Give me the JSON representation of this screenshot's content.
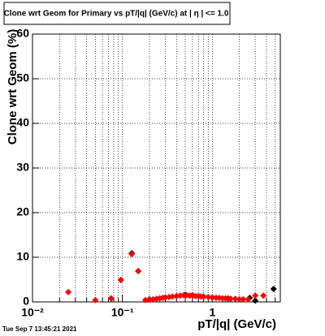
{
  "chart_data": {
    "type": "scatter",
    "title": "Clone wrt Geom for Primary vs pT/|q| (GeV/c) at |  η  | <= 1.0",
    "x_label": "pT/|q| (GeV/c)",
    "y_label": "Clone wrt Geom (%)",
    "timestamp": "Tue Sep  7 13:45:21 2021",
    "log_x": true,
    "grid": true,
    "xlim": [
      0.01,
      5.7
    ],
    "xticks": [
      {
        "value": 0.01,
        "label": "10⁻²"
      },
      {
        "value": 0.1,
        "label": "10⁻¹"
      },
      1
    ],
    "xminorticks": [
      0.02,
      0.03,
      0.04,
      0.05,
      0.06,
      0.07,
      0.08,
      0.09,
      0.2,
      0.3,
      0.4,
      0.5,
      0.6,
      0.7,
      0.8,
      0.9,
      2,
      3,
      4,
      5
    ],
    "ylim": [
      0,
      60
    ],
    "yticks": [
      0,
      10,
      20,
      30,
      40,
      50,
      60
    ],
    "series": [
      {
        "color": "#000000",
        "x": [
          0.075,
          0.096,
          0.127,
          0.15,
          0.2,
          0.3,
          0.4,
          0.5,
          0.6,
          0.8,
          1.0,
          1.5,
          2.6,
          3.0,
          4.8
        ],
        "values": [
          0.8,
          4.9,
          10.9,
          6.9,
          0.6,
          1.0,
          1.3,
          1.6,
          1.5,
          1.2,
          1.0,
          0.8,
          0.9,
          0.3,
          2.9
        ]
      },
      {
        "color": "#ff0000",
        "x": [
          0.025,
          0.05,
          0.075,
          0.096,
          0.127,
          0.15,
          0.18,
          0.2,
          0.22,
          0.24,
          0.26,
          0.28,
          0.3,
          0.33,
          0.36,
          0.4,
          0.44,
          0.48,
          0.52,
          0.56,
          0.6,
          0.65,
          0.7,
          0.75,
          0.8,
          0.9,
          1.0,
          1.1,
          1.2,
          1.3,
          1.4,
          1.5,
          1.6,
          1.8,
          2.0,
          2.2,
          2.5,
          3.0,
          3.7
        ],
        "values": [
          2.2,
          0.4,
          0.8,
          4.9,
          10.7,
          6.9,
          0.4,
          0.5,
          0.6,
          0.7,
          0.8,
          0.9,
          1.0,
          1.1,
          1.2,
          1.3,
          1.4,
          1.5,
          1.5,
          1.4,
          1.4,
          1.3,
          1.3,
          1.2,
          1.2,
          1.1,
          1.0,
          0.9,
          0.9,
          0.8,
          0.8,
          0.7,
          0.7,
          0.7,
          0.6,
          0.6,
          0.6,
          1.4,
          1.4
        ]
      }
    ]
  }
}
